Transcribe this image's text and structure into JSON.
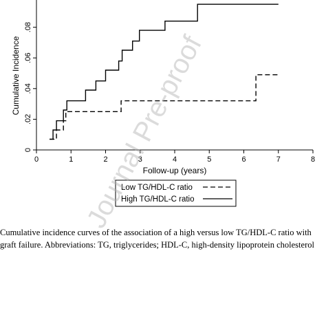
{
  "chart_data": {
    "type": "line",
    "xlabel": "Follow-up (years)",
    "ylabel": "Cumulative Incidence",
    "xlim": [
      0,
      8
    ],
    "ylim": [
      0,
      0.1
    ],
    "x_ticks": [
      "0",
      "1",
      "2",
      "3",
      "4",
      "5",
      "6",
      "7",
      "8"
    ],
    "y_ticks": [
      "0",
      ".02",
      ".04",
      ".06",
      ".08"
    ],
    "grid": false,
    "legend_position": "bottom",
    "series": [
      {
        "name": "Low TG/HDL-C ratio",
        "style": "dashed",
        "x": [
          0.38,
          0.58,
          0.78,
          0.85,
          2.45,
          6.35,
          7.0
        ],
        "y": [
          0.007,
          0.013,
          0.019,
          0.025,
          0.032,
          0.049,
          0.049
        ]
      },
      {
        "name": "High TG/HDL-C ratio",
        "style": "solid",
        "x": [
          0.38,
          0.48,
          0.58,
          0.78,
          0.88,
          1.42,
          1.72,
          2.0,
          2.38,
          2.48,
          2.78,
          2.98,
          3.72,
          4.66,
          7.0
        ],
        "y": [
          0.007,
          0.013,
          0.019,
          0.026,
          0.032,
          0.039,
          0.045,
          0.052,
          0.058,
          0.065,
          0.071,
          0.078,
          0.084,
          0.095,
          0.095
        ]
      }
    ]
  },
  "caption": {
    "line1": "Cumulative incidence curves of the association of a high versus low TG/HDL-C ratio with",
    "line2": "graft failure. Abbreviations: TG, triglycerides; HDL-C, high-density lipoprotein cholesterol"
  },
  "watermark": "Journal Pre-proof",
  "colors": {
    "line": "#000000",
    "watermark": "#afafaf"
  }
}
